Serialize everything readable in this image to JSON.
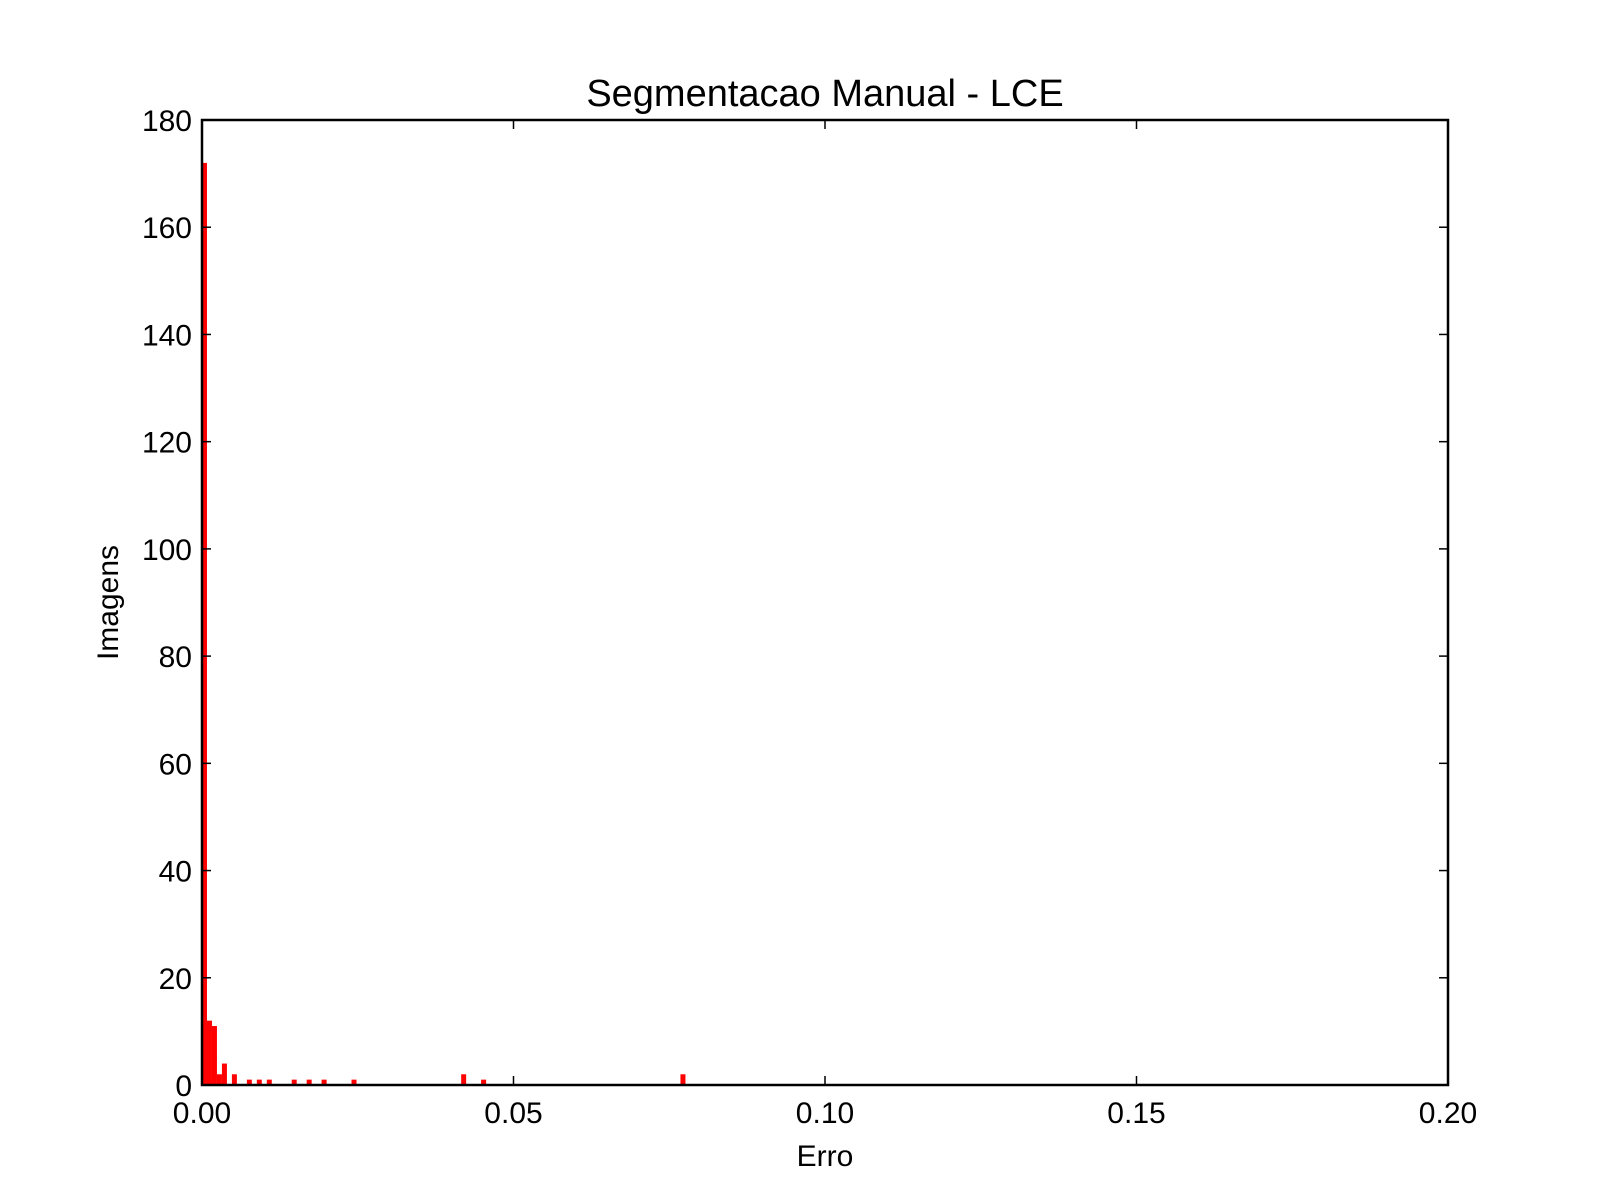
{
  "chart_data": {
    "type": "bar",
    "title": "Segmentacao Manual - LCE",
    "xlabel": "Erro",
    "ylabel": "Imagens",
    "xlim": [
      0.0,
      0.2
    ],
    "ylim": [
      0,
      180
    ],
    "grid": false,
    "bar_color": "#ff0000",
    "x_ticks": [
      {
        "value": 0.0,
        "label": "0.00"
      },
      {
        "value": 0.05,
        "label": "0.05"
      },
      {
        "value": 0.1,
        "label": "0.10"
      },
      {
        "value": 0.15,
        "label": "0.15"
      },
      {
        "value": 0.2,
        "label": "0.20"
      }
    ],
    "y_ticks": [
      {
        "value": 0,
        "label": "0"
      },
      {
        "value": 20,
        "label": "20"
      },
      {
        "value": 40,
        "label": "40"
      },
      {
        "value": 60,
        "label": "60"
      },
      {
        "value": 80,
        "label": "80"
      },
      {
        "value": 100,
        "label": "100"
      },
      {
        "value": 120,
        "label": "120"
      },
      {
        "value": 140,
        "label": "140"
      },
      {
        "value": 160,
        "label": "160"
      },
      {
        "value": 180,
        "label": "180"
      }
    ],
    "bin_width": 0.0008,
    "bins": [
      {
        "x": 0.0,
        "count": 172
      },
      {
        "x": 0.0008,
        "count": 12
      },
      {
        "x": 0.0016,
        "count": 11
      },
      {
        "x": 0.0024,
        "count": 2
      },
      {
        "x": 0.0032,
        "count": 4
      },
      {
        "x": 0.0048,
        "count": 2
      },
      {
        "x": 0.0072,
        "count": 1
      },
      {
        "x": 0.0088,
        "count": 1
      },
      {
        "x": 0.0104,
        "count": 1
      },
      {
        "x": 0.0144,
        "count": 1
      },
      {
        "x": 0.0168,
        "count": 1
      },
      {
        "x": 0.0192,
        "count": 1
      },
      {
        "x": 0.024,
        "count": 1
      },
      {
        "x": 0.0416,
        "count": 2
      },
      {
        "x": 0.0448,
        "count": 1
      },
      {
        "x": 0.0768,
        "count": 2
      }
    ]
  }
}
